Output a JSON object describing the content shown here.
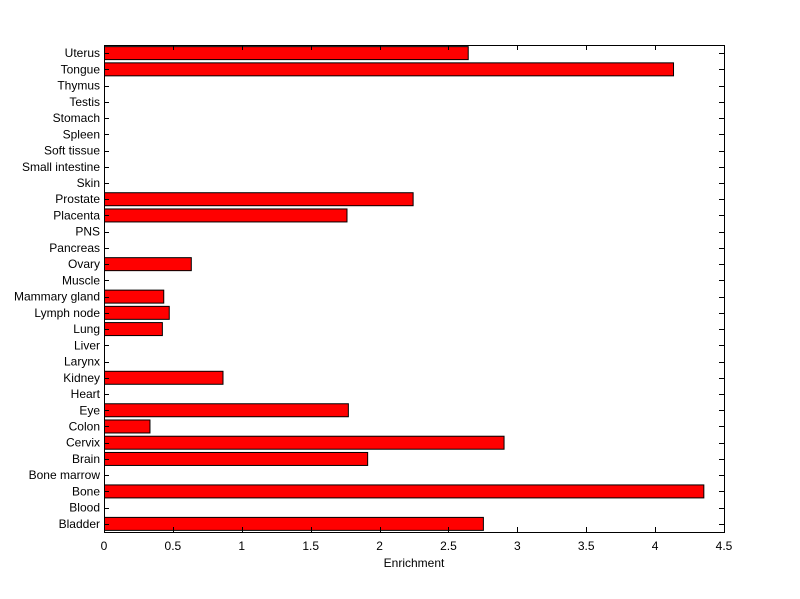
{
  "chart_data": {
    "type": "bar",
    "orientation": "horizontal",
    "xlabel": "Enrichment",
    "ylabel": "",
    "title": "",
    "xlim": [
      0,
      4.5
    ],
    "xticks": [
      "0",
      "0.5",
      "1",
      "1.5",
      "2",
      "2.5",
      "3",
      "3.5",
      "4",
      "4.5"
    ],
    "grid": false,
    "bar_color": "#ff0000",
    "categories": [
      "Bladder",
      "Blood",
      "Bone",
      "Bone marrow",
      "Brain",
      "Cervix",
      "Colon",
      "Eye",
      "Heart",
      "Kidney",
      "Larynx",
      "Liver",
      "Lung",
      "Lymph node",
      "Mammary gland",
      "Muscle",
      "Ovary",
      "Pancreas",
      "PNS",
      "Placenta",
      "Prostate",
      "Skin",
      "Small intestine",
      "Soft tissue",
      "Spleen",
      "Stomach",
      "Testis",
      "Thymus",
      "Tongue",
      "Uterus"
    ],
    "values": [
      2.75,
      0,
      4.35,
      0,
      1.91,
      2.9,
      0.33,
      1.77,
      0,
      0.86,
      0,
      0,
      0.42,
      0.47,
      0.43,
      0,
      0.63,
      0,
      0,
      1.76,
      2.24,
      0,
      0,
      0,
      0,
      0,
      0,
      0,
      4.13,
      2.64
    ]
  }
}
